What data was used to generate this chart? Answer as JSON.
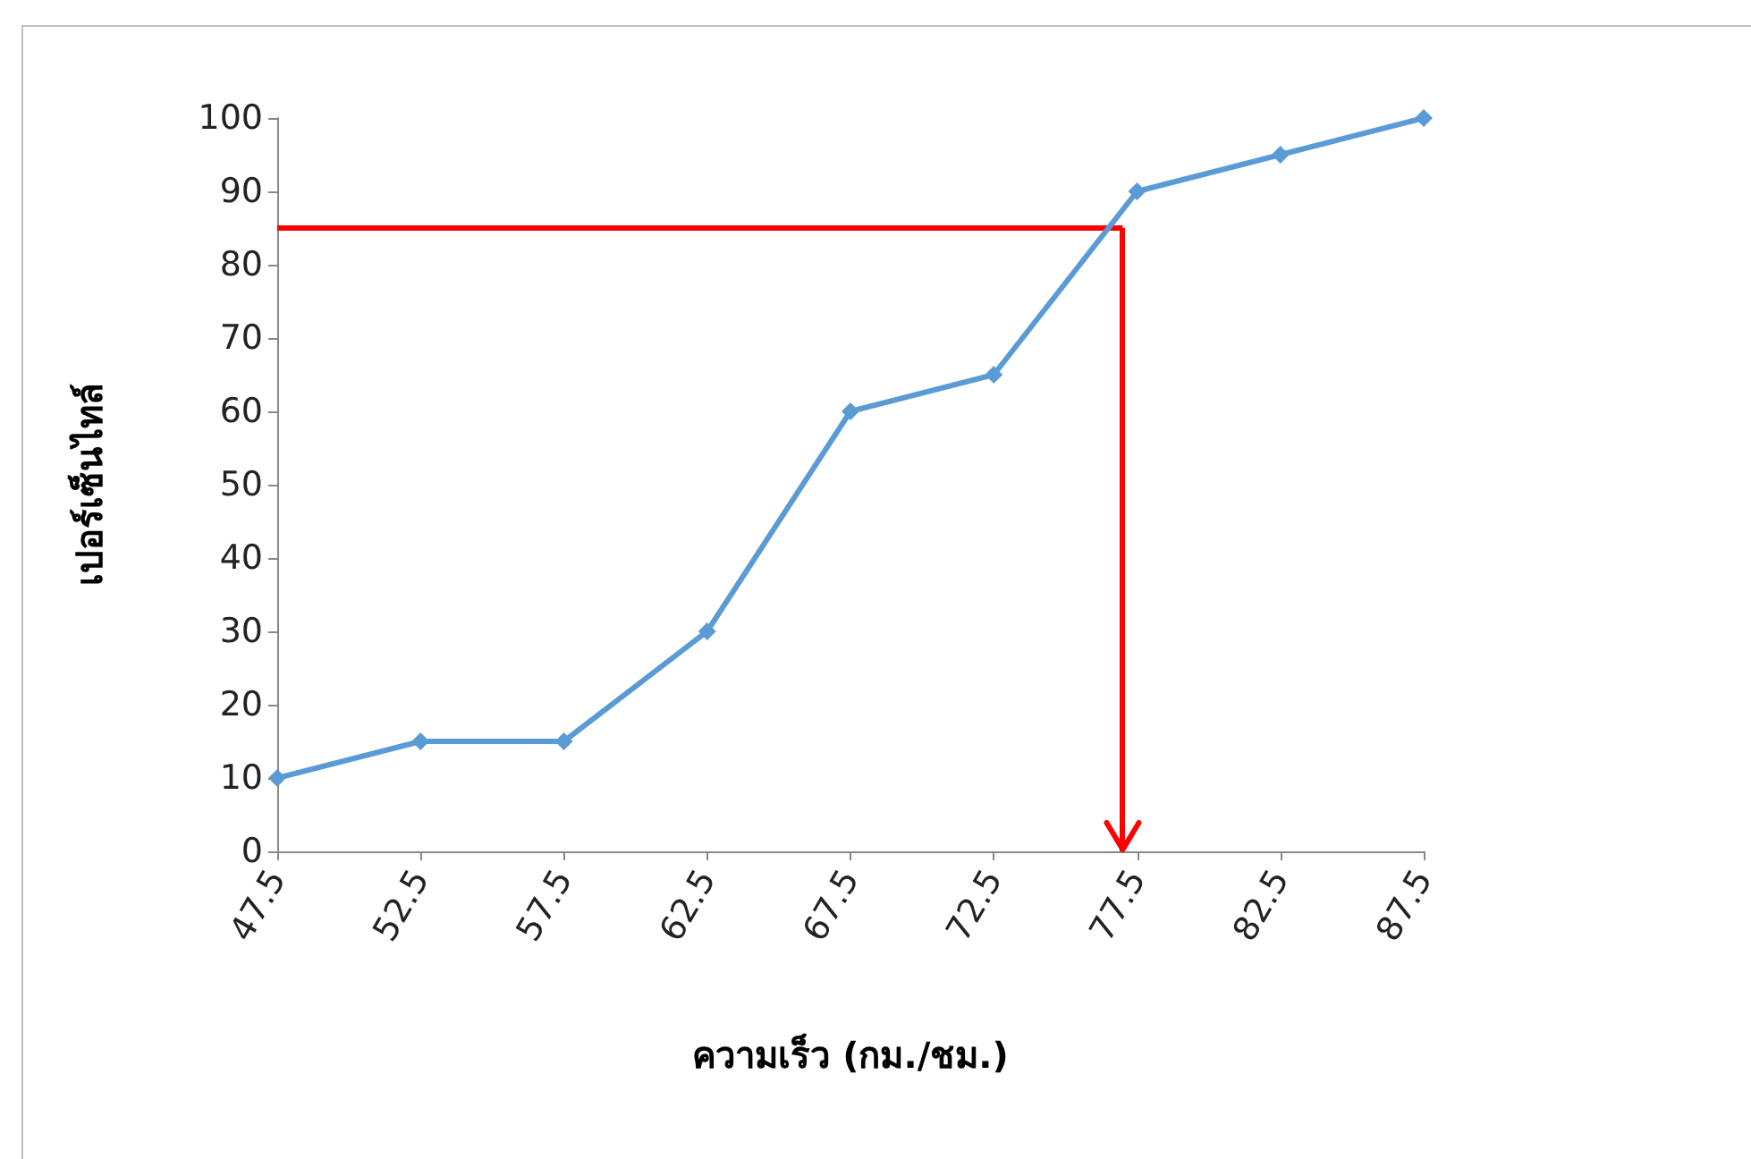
{
  "chart_data": {
    "type": "line",
    "xlabel": "ความเร็ว (กม./ชม.)",
    "ylabel": "เปอร์เซ็นไทล์",
    "x": [
      47.5,
      52.5,
      57.5,
      62.5,
      67.5,
      72.5,
      77.5,
      82.5,
      87.5
    ],
    "xlim": [
      47.5,
      87.5
    ],
    "xticks": [
      47.5,
      52.5,
      57.5,
      62.5,
      67.5,
      72.5,
      77.5,
      82.5,
      87.5
    ],
    "ylim": [
      0,
      100
    ],
    "yticks": [
      0,
      10,
      20,
      30,
      40,
      50,
      60,
      70,
      80,
      90,
      100
    ],
    "marker": "diamond",
    "grid": false,
    "ref_lines": [
      {
        "axis": "y",
        "value": 85,
        "color": "#ff0000"
      },
      {
        "axis": "x",
        "value": 77,
        "color": "#ff0000"
      }
    ],
    "series": [
      {
        "color": "#5b9bd5",
        "values": [
          10,
          15,
          15,
          30,
          60,
          65,
          90,
          95,
          100
        ]
      }
    ]
  }
}
